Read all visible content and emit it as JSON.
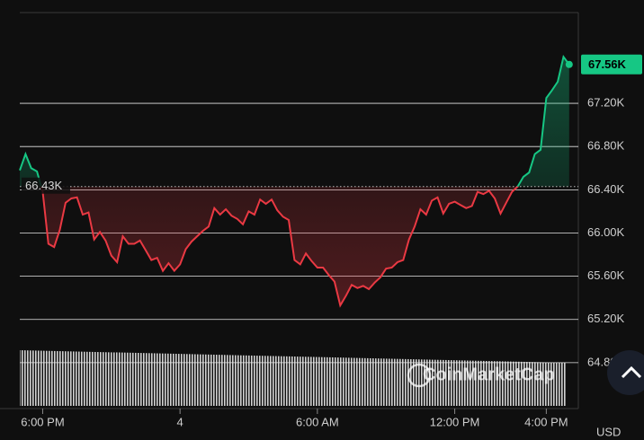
{
  "chart_data": {
    "type": "line",
    "series": [
      {
        "name": "Price",
        "values": [
          66580,
          66730,
          66600,
          66570,
          66380,
          65900,
          65870,
          66030,
          66280,
          66320,
          66330,
          66170,
          66190,
          65940,
          66010,
          65930,
          65790,
          65730,
          65970,
          65900,
          65900,
          65930,
          65840,
          65750,
          65770,
          65650,
          65720,
          65650,
          65710,
          65850,
          65920,
          65970,
          66020,
          66060,
          66230,
          66170,
          66220,
          66160,
          66130,
          66080,
          66200,
          66170,
          66310,
          66270,
          66310,
          66210,
          66150,
          66120,
          65750,
          65710,
          65810,
          65740,
          65680,
          65680,
          65610,
          65550,
          65330,
          65420,
          65520,
          65490,
          65510,
          65480,
          65540,
          65590,
          65670,
          65680,
          65730,
          65750,
          65940,
          66060,
          66220,
          66170,
          66300,
          66330,
          66180,
          66270,
          66290,
          66260,
          66230,
          66250,
          66380,
          66360,
          66390,
          66320,
          66180,
          66280,
          66380,
          66430,
          66520,
          66560,
          66730,
          66770,
          67250,
          67320,
          67400,
          67630,
          67560
        ]
      }
    ],
    "x": [
      -1,
      -0.75,
      -0.5,
      -0.25,
      0,
      0.25,
      0.5,
      0.75,
      1,
      1.25,
      1.5,
      1.75,
      2,
      2.25,
      2.5,
      2.75,
      3,
      3.25,
      3.5,
      3.75,
      4,
      4.25,
      4.5,
      4.75,
      5,
      5.25,
      5.5,
      5.75,
      6,
      6.25,
      6.5,
      6.75,
      7,
      7.25,
      7.5,
      7.75,
      8,
      8.25,
      8.5,
      8.75,
      9,
      9.25,
      9.5,
      9.75,
      10,
      10.25,
      10.5,
      10.75,
      11,
      11.25,
      11.5,
      11.75,
      12,
      12.25,
      12.5,
      12.75,
      13,
      13.25,
      13.5,
      13.75,
      14,
      14.25,
      14.5,
      14.75,
      15,
      15.25,
      15.5,
      15.75,
      16,
      16.25,
      16.5,
      16.75,
      17,
      17.25,
      17.5,
      17.75,
      18,
      18.25,
      18.5,
      18.75,
      19,
      19.25,
      19.5,
      19.75,
      20,
      20.25,
      20.5,
      20.75,
      21,
      21.25,
      21.5,
      21.75,
      22,
      22.25,
      22.5,
      22.75,
      23
    ],
    "up_color": "#16c784",
    "down_color": "#ea3943",
    "baseline": {
      "value": 66430,
      "label": "66.43K"
    },
    "current": {
      "value": 67560,
      "label": "67.56K"
    },
    "xlim": [
      -1,
      23.4
    ],
    "xticks": [
      {
        "value": 0,
        "label": "6:00 PM"
      },
      {
        "value": 6,
        "label": "4"
      },
      {
        "value": 12,
        "label": "6:00 AM"
      },
      {
        "value": 18,
        "label": "12:00 PM"
      },
      {
        "value": 22,
        "label": "4:00 PM"
      }
    ],
    "ylim": [
      64400,
      68040
    ],
    "yticks": [
      {
        "value": 64800,
        "label": "64.80K"
      },
      {
        "value": 65200,
        "label": "65.20K"
      },
      {
        "value": 65600,
        "label": "65.60K"
      },
      {
        "value": 66000,
        "label": "66.00K"
      },
      {
        "value": 66400,
        "label": "66.40K"
      },
      {
        "value": 66800,
        "label": "66.80K"
      },
      {
        "value": 67200,
        "label": "67.20K"
      }
    ],
    "grid": true,
    "currency": "USD",
    "watermark": "CoinMarketCap"
  }
}
